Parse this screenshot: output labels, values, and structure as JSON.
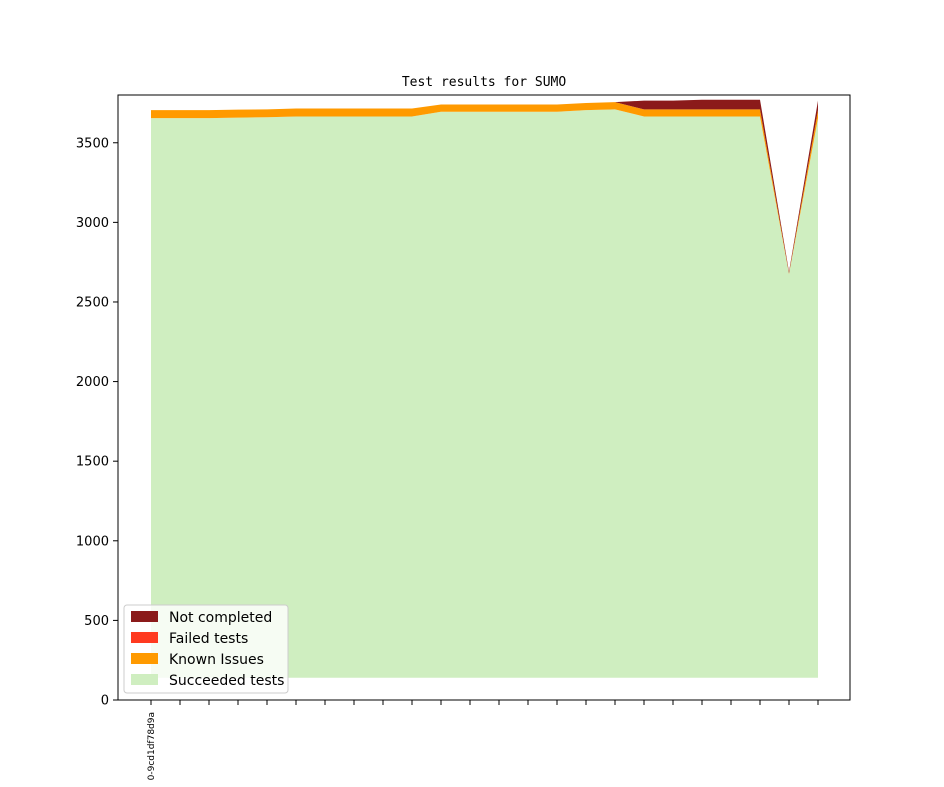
{
  "chart_data": {
    "type": "area",
    "title": "Test results for SUMO",
    "xlabel": "",
    "ylabel": "",
    "ylim": [
      0,
      3800
    ],
    "y_ticks": [
      0,
      500,
      1000,
      1500,
      2000,
      2500,
      3000,
      3500
    ],
    "x_tick_count": 24,
    "x_tick_labels": [
      "0-9cd1df78d9a",
      "",
      "",
      "",
      "",
      "",
      "",
      "",
      "",
      "",
      "",
      "",
      "",
      "",
      "",
      "",
      "",
      "",
      "",
      "",
      "",
      "",
      "",
      ""
    ],
    "stacked": true,
    "legend_position": "lower-left",
    "series": [
      {
        "name": "Succeeded tests",
        "color": "#cfeec0",
        "values": [
          3515,
          3515,
          3515,
          3518,
          3520,
          3525,
          3525,
          3525,
          3525,
          3525,
          3555,
          3555,
          3555,
          3555,
          3555,
          3565,
          3570,
          3525,
          3525,
          3525,
          3525,
          3525,
          2535,
          3515
        ]
      },
      {
        "name": "Known Issues",
        "color": "#ff9a00",
        "values": [
          50,
          50,
          50,
          50,
          50,
          50,
          50,
          50,
          50,
          50,
          45,
          45,
          45,
          45,
          45,
          45,
          45,
          45,
          45,
          45,
          45,
          45,
          5,
          50
        ]
      },
      {
        "name": "Failed tests",
        "color": "#ff3a20",
        "values": [
          0,
          0,
          0,
          0,
          0,
          0,
          0,
          0,
          0,
          0,
          0,
          0,
          0,
          0,
          0,
          0,
          0,
          0,
          0,
          0,
          0,
          0,
          0,
          0
        ]
      },
      {
        "name": "Not completed",
        "color": "#8b1a1a",
        "values": [
          0,
          0,
          0,
          0,
          0,
          0,
          0,
          0,
          0,
          0,
          0,
          0,
          0,
          0,
          0,
          0,
          0,
          55,
          55,
          60,
          60,
          60,
          10,
          60
        ]
      }
    ],
    "baseline_offset": 140
  }
}
